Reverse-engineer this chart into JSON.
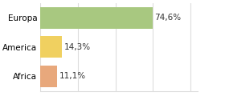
{
  "categories": [
    "Africa",
    "America",
    "Europa"
  ],
  "values": [
    11.1,
    14.3,
    74.6
  ],
  "bar_colors": [
    "#e8a87c",
    "#f0d060",
    "#a8c880"
  ],
  "labels": [
    "11,1%",
    "14,3%",
    "74,6%"
  ],
  "background_color": "#ffffff",
  "xlim": [
    0,
    105
  ],
  "bar_height": 0.75,
  "label_fontsize": 7.5,
  "tick_fontsize": 7.5,
  "grid_color": "#dddddd"
}
